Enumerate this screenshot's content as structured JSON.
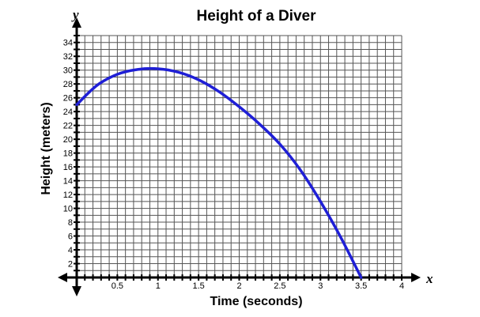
{
  "chart_data": {
    "type": "line",
    "title": "Height of a Diver",
    "xlabel": "Time (seconds)",
    "ylabel": "Height (meters)",
    "x_axis_letter": "x",
    "y_axis_letter": "y",
    "xlim": [
      0,
      4
    ],
    "ylim": [
      0,
      35
    ],
    "x_ticks": [
      0.5,
      1,
      1.5,
      2,
      2.5,
      3,
      3.5,
      4
    ],
    "x_tick_labels": [
      "0.5",
      "1",
      "1.5",
      "2",
      "2.5",
      "3",
      "3.5",
      "4"
    ],
    "y_ticks": [
      2,
      4,
      6,
      8,
      10,
      12,
      14,
      16,
      18,
      20,
      22,
      24,
      26,
      28,
      30,
      32,
      34
    ],
    "y_tick_labels": [
      "2",
      "4",
      "6",
      "8",
      "10",
      "12",
      "14",
      "16",
      "18",
      "20",
      "22",
      "24",
      "26",
      "28",
      "30",
      "32",
      "34"
    ],
    "grid": true,
    "grid_x_step": 0.1,
    "grid_y_step": 1,
    "series": [
      {
        "color": "#1f1fd6",
        "x": [
          0,
          0.25,
          0.5,
          0.75,
          1,
          1.25,
          1.5,
          1.75,
          2,
          2.25,
          2.5,
          2.75,
          3,
          3.25,
          3.5
        ],
        "y": [
          25,
          27.8,
          29.4,
          30.1,
          30.2,
          29.7,
          28.6,
          26.9,
          24.7,
          22.2,
          19.3,
          15.6,
          11,
          5.8,
          0
        ]
      }
    ]
  }
}
